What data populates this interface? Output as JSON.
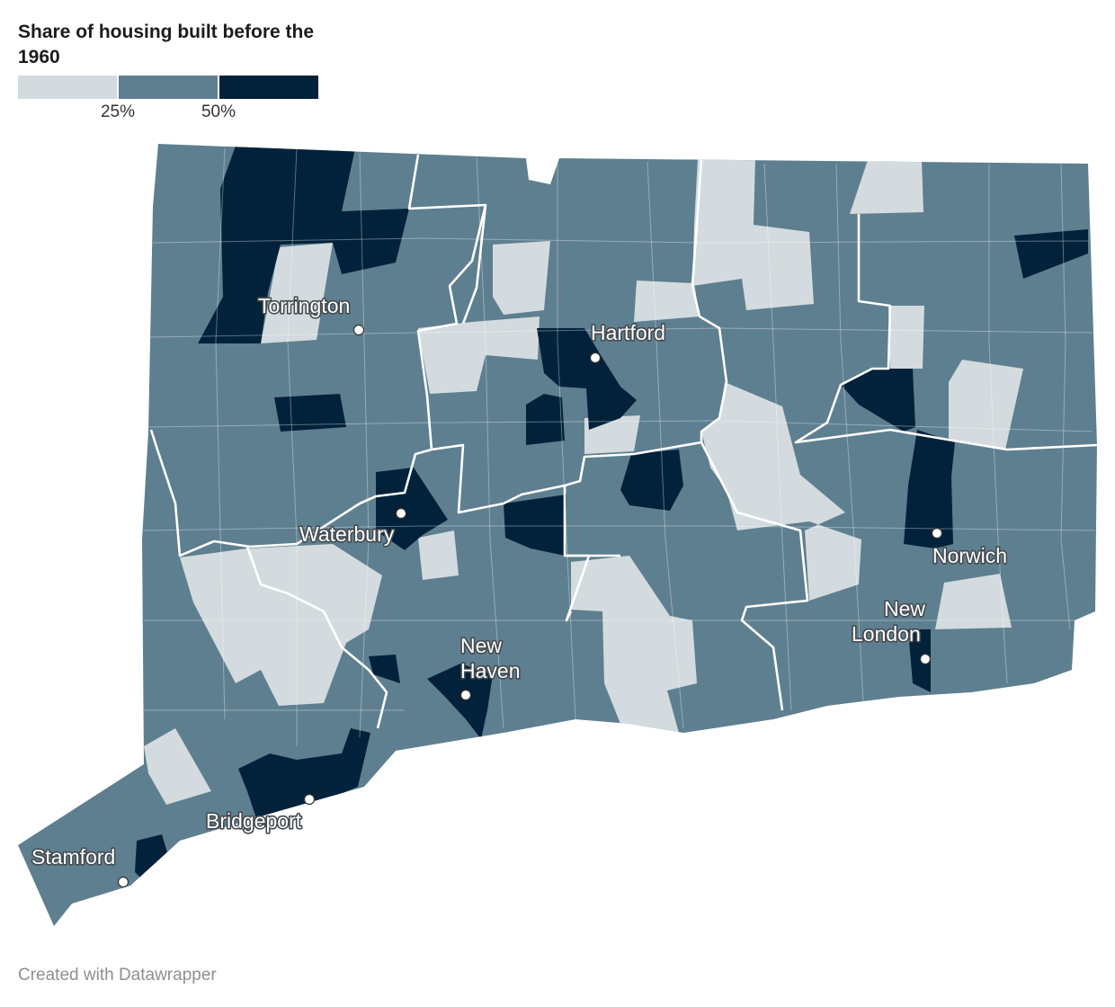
{
  "title": "Share of housing built before the 1960",
  "legend": {
    "bins": [
      {
        "color": "#d3dbdf"
      },
      {
        "color": "#5e7f8f"
      },
      {
        "color": "#02223b"
      }
    ],
    "ticks": [
      {
        "label": "25%",
        "value": 25
      },
      {
        "label": "50%",
        "value": 50
      }
    ],
    "range": [
      0,
      75
    ]
  },
  "colors": {
    "low": "#d3dbdf",
    "mid": "#5e7f8f",
    "high": "#02223b",
    "border": "#ffffff"
  },
  "cities": [
    {
      "name": "torrington",
      "lines": [
        "Torrington"
      ]
    },
    {
      "name": "hartford",
      "lines": [
        "Hartford"
      ]
    },
    {
      "name": "waterbury",
      "lines": [
        "Waterbury"
      ]
    },
    {
      "name": "new-haven",
      "lines": [
        "New",
        "Haven"
      ]
    },
    {
      "name": "new-london",
      "lines": [
        "New",
        "London"
      ]
    },
    {
      "name": "norwich",
      "lines": [
        "Norwich"
      ]
    },
    {
      "name": "bridgeport",
      "lines": [
        "Bridgeport"
      ]
    },
    {
      "name": "stamford",
      "lines": [
        "Stamford"
      ]
    }
  ],
  "footer": "Created with Datawrapper"
}
